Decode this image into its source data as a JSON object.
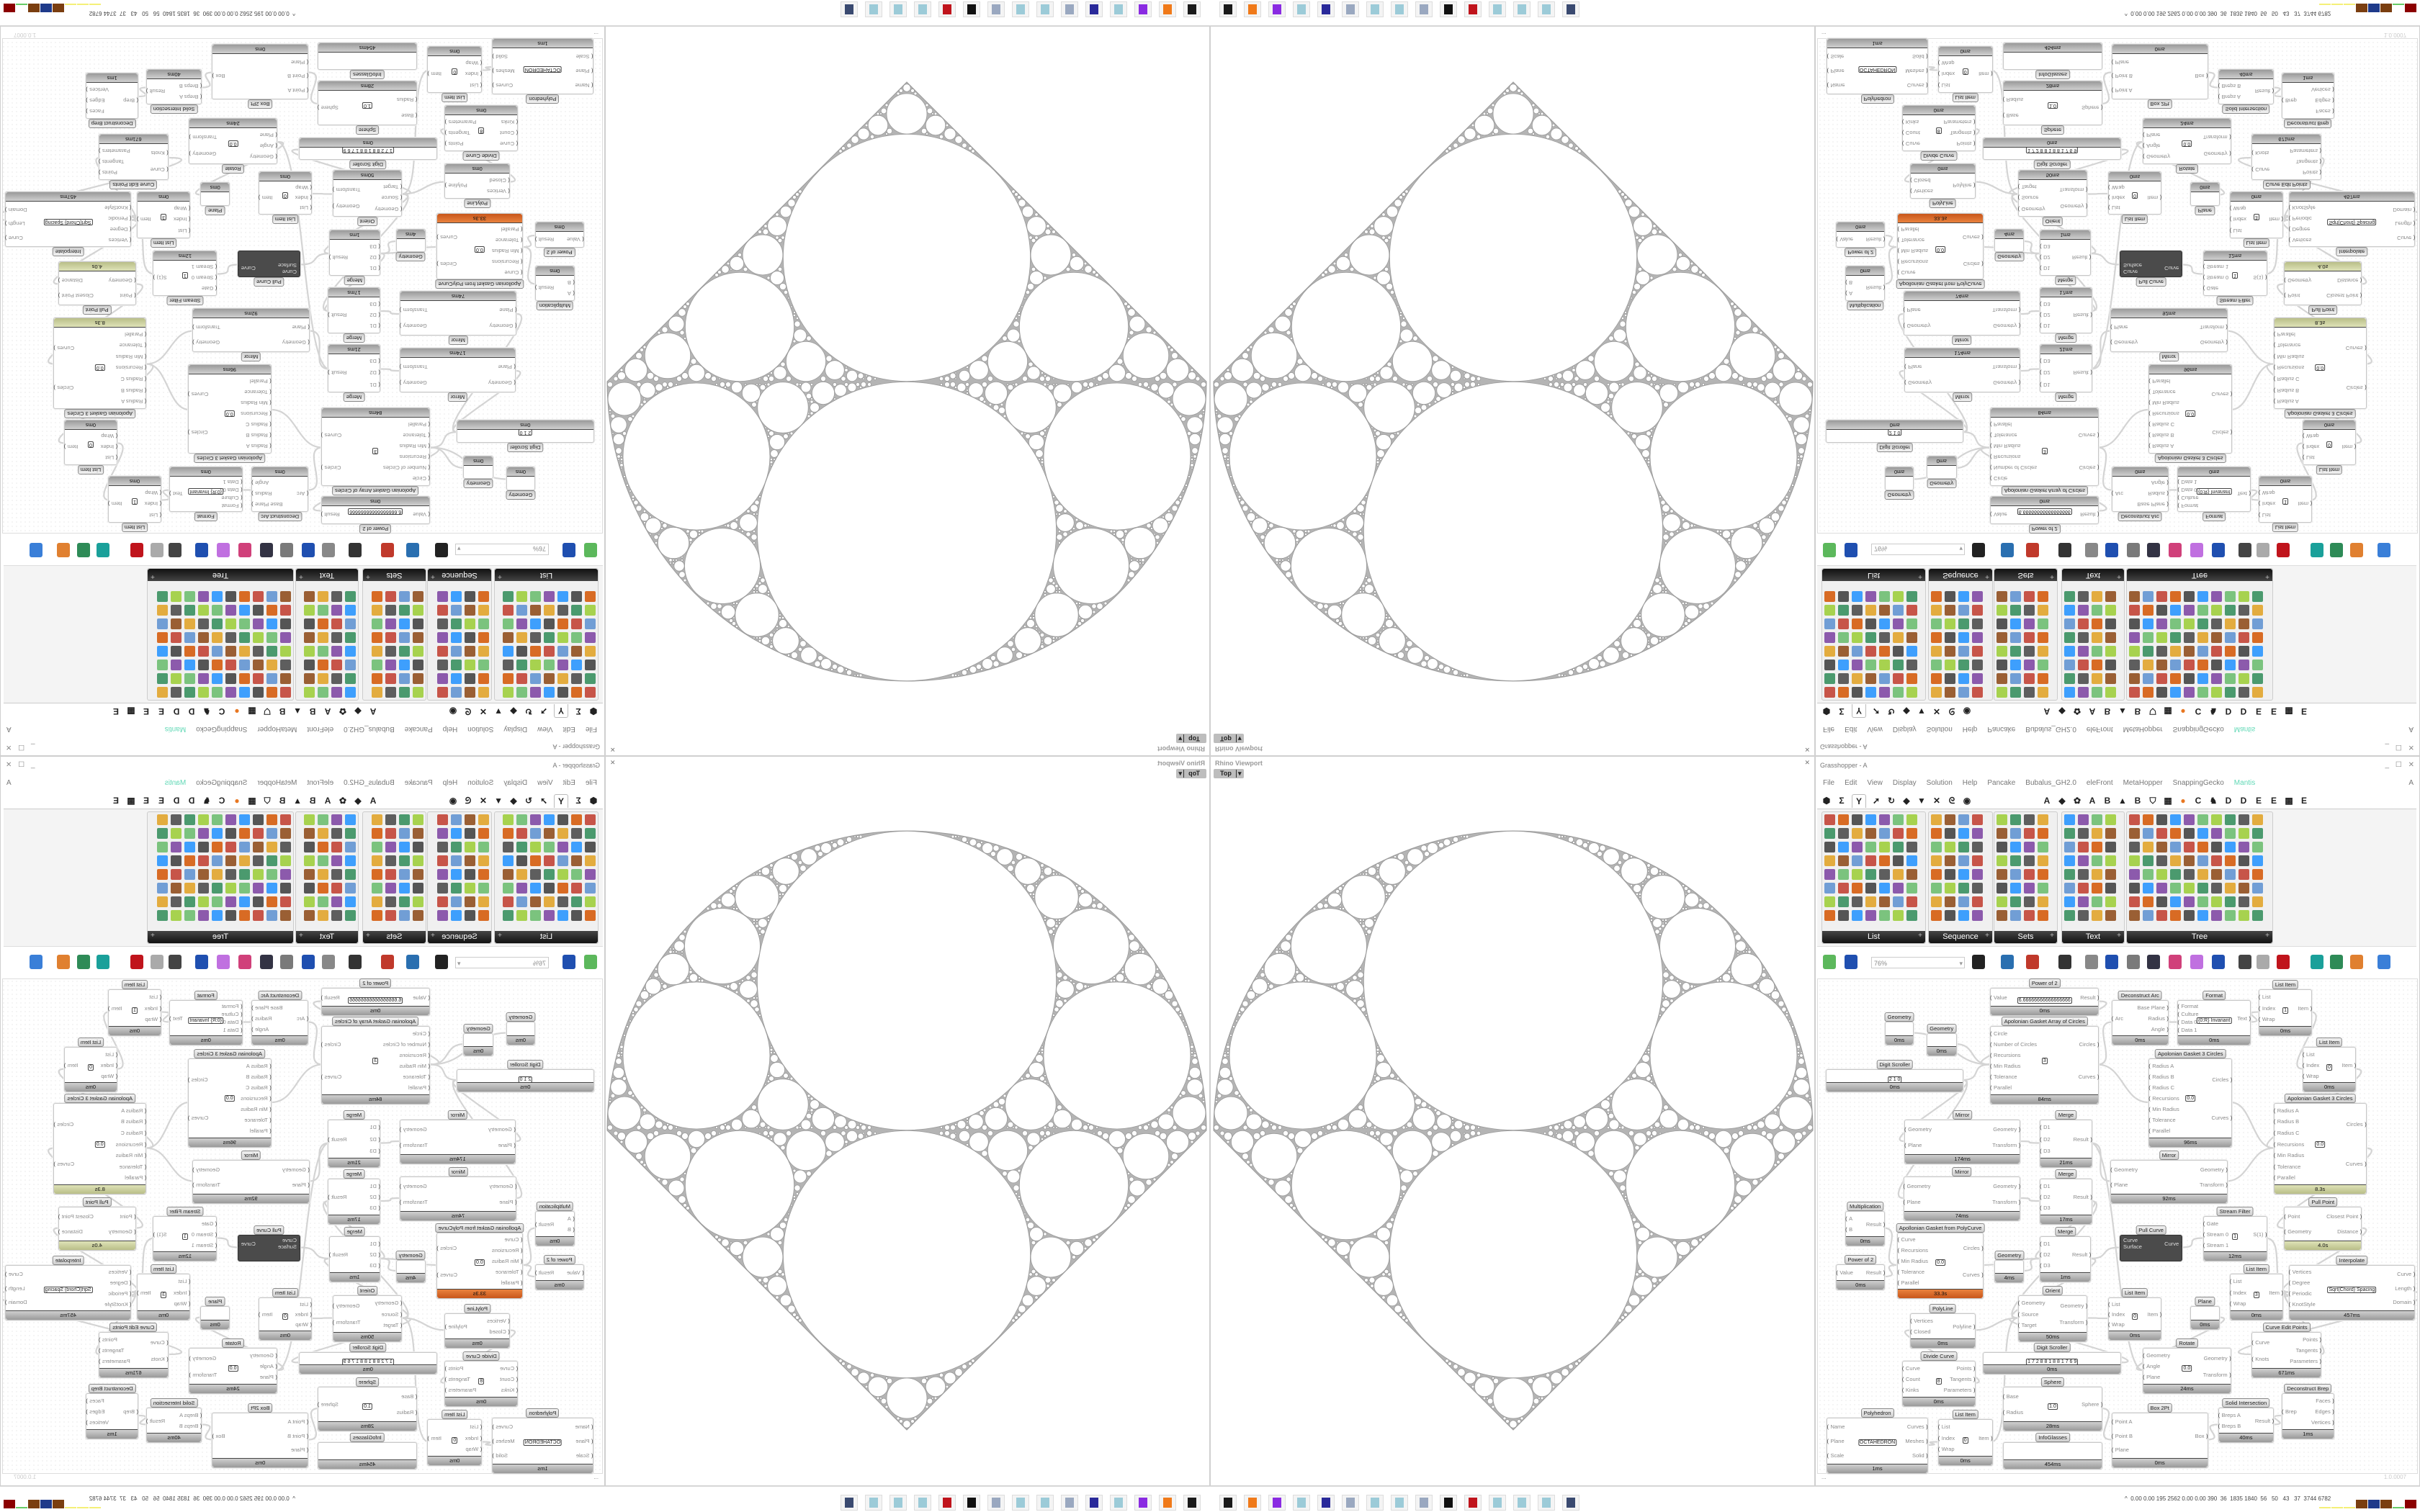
{
  "viewport": {
    "title": "Rhino Viewport",
    "view": "Top",
    "close": "✕"
  },
  "grasshopper": {
    "title": "Grasshopper - A",
    "window_buttons": "_ ☐ ✕",
    "menu": [
      "File",
      "Edit",
      "View",
      "Display",
      "Solution",
      "Help",
      "Pancake",
      "Bubalus_GH2.0",
      "eleFront",
      "MetaHopper",
      "SnappingGecko",
      "Mantis"
    ],
    "menu_right": "A",
    "accent": "#5fd8b5",
    "tabs": [
      "⬢",
      "Σ",
      "Y",
      "➚",
      "↻",
      "◆",
      "▼",
      "✕",
      "ᘓ",
      "◉",
      "A",
      "◆",
      "✿",
      "A",
      "B",
      "▲",
      "B",
      "⛉",
      "▦",
      "●",
      "C",
      "♞",
      "D",
      "D",
      "E",
      "E",
      "▩",
      "E"
    ],
    "selected_tab": "Y",
    "panels": [
      {
        "label": "List"
      },
      {
        "label": "Sequence"
      },
      {
        "label": "Sets"
      },
      {
        "label": "Text"
      },
      {
        "label": "Tree"
      }
    ],
    "panel_expand": "+",
    "zoom": "76%",
    "zoom_arrow": "▾",
    "status_left": "...",
    "version": "1.0.0007"
  },
  "canvas": {
    "nodes": [
      {
        "title": "Power of 2",
        "in": [
          "Value"
        ],
        "out": [
          "Result"
        ],
        "value": "6.66666666666666666",
        "time": "0ms"
      },
      {
        "title": "Apolonian Gasket Array of Circles",
        "in": [
          "Circle",
          "Number of Circles",
          "Recursions",
          "Min Radius",
          "Tolerance",
          "Parallel"
        ],
        "out": [
          "Circles",
          "Curves"
        ],
        "value": "3",
        "time": "84ms"
      },
      {
        "title": "Geometry",
        "in": [],
        "out": [],
        "time": "0ms"
      },
      {
        "title": "Geometry",
        "in": [],
        "out": [],
        "time": "0ms"
      },
      {
        "title": "Digit Scroller",
        "in": [],
        "out": [],
        "value": "2 1 0",
        "time": "0ms"
      },
      {
        "title": "Deconstruct Arc",
        "in": [
          "Arc"
        ],
        "out": [
          "Base Plane",
          "Radius",
          "Angle"
        ],
        "time": "0ms"
      },
      {
        "title": "Format",
        "in": [
          "Format",
          "Culture",
          "Data 0",
          "Data 1"
        ],
        "out": [
          "Text"
        ],
        "value": "{0:R} Invariant",
        "time": "0ms"
      },
      {
        "title": "List Item",
        "in": [
          "List",
          "Index",
          "Wrap"
        ],
        "out": [
          "Item"
        ],
        "value": "1",
        "time": "0ms"
      },
      {
        "title": "List Item",
        "in": [
          "List",
          "Index",
          "Wrap"
        ],
        "out": [
          "Item"
        ],
        "value": "0",
        "time": "0ms"
      },
      {
        "title": "Apolonian Gasket 3 Circles",
        "in": [
          "Radius A",
          "Radius B",
          "Radius C",
          "Recursions",
          "Min Radius",
          "Tolerance",
          "Parallel"
        ],
        "out": [
          "Circles",
          "Curves"
        ],
        "value": "0.0",
        "time": "96ms"
      },
      {
        "title": "Mirror",
        "in": [
          "Geometry",
          "Plane"
        ],
        "out": [
          "Geometry",
          "Transform"
        ],
        "time": "174ms"
      },
      {
        "title": "Merge",
        "in": [
          "D1",
          "D2",
          "D3"
        ],
        "out": [
          "Result"
        ],
        "time": "21ms"
      },
      {
        "title": "Mirror",
        "in": [
          "Geometry",
          "Plane"
        ],
        "out": [
          "Geometry",
          "Transform"
        ],
        "time": "74ms"
      },
      {
        "title": "Merge",
        "in": [
          "D1",
          "D2",
          "D3"
        ],
        "out": [
          "Result"
        ],
        "time": "17ms"
      },
      {
        "title": "Mirror",
        "in": [
          "Geometry",
          "Plane"
        ],
        "out": [
          "Geometry",
          "Transform"
        ],
        "time": "92ms"
      },
      {
        "title": "Apolonian Gasket 3 Circles",
        "in": [
          "Radius A",
          "Radius B",
          "Radius C",
          "Recursions",
          "Min Radius",
          "Tolerance",
          "Parallel"
        ],
        "out": [
          "Circles",
          "Curves"
        ],
        "value": "0.0",
        "time": "8.3s",
        "status": "olive"
      },
      {
        "title": "Pull Point",
        "in": [
          "Point",
          "Geometry"
        ],
        "out": [
          "Closest Point",
          "Distance"
        ],
        "time": "4.0s",
        "status": "olive"
      },
      {
        "title": "Multiplication",
        "in": [
          "A",
          "B"
        ],
        "out": [
          "Result"
        ],
        "time": "0ms"
      },
      {
        "title": "Apollonian Gasket from PolyCurve",
        "in": [
          "Curve",
          "Recursions",
          "Min Radius",
          "Tolerance",
          "Parallel"
        ],
        "out": [
          "Circles",
          "Curves"
        ],
        "value": "0.0",
        "time": "33.3s",
        "status": "orange"
      },
      {
        "title": "Power of 2",
        "in": [
          "Value"
        ],
        "out": [
          "Result"
        ],
        "time": "0ms"
      },
      {
        "title": "Geometry",
        "in": [],
        "out": [],
        "time": "4ms"
      },
      {
        "title": "Merge",
        "in": [
          "D1",
          "D2",
          "D3"
        ],
        "out": [
          "Result"
        ],
        "time": "1ms"
      },
      {
        "title": "Pull Curve",
        "in": [
          "Curve",
          "Surface"
        ],
        "out": [
          "Curve"
        ],
        "status": "dark"
      },
      {
        "title": "Stream Filter",
        "in": [
          "Gate",
          "Stream 0",
          "Stream 1"
        ],
        "out": [
          "S(1)"
        ],
        "value": "1",
        "time": "12ms"
      },
      {
        "title": "Interpolate",
        "in": [
          "Vertices",
          "Degree",
          "Periodic",
          "KnotStyle"
        ],
        "out": [
          "Curve",
          "Length",
          "Domain"
        ],
        "value": "Sqrt(Chord) Spacing",
        "time": "457ms"
      },
      {
        "title": "List Item",
        "in": [
          "List",
          "Index",
          "Wrap"
        ],
        "out": [
          "Item"
        ],
        "value": "3",
        "time": "0ms"
      },
      {
        "title": "Orient",
        "in": [
          "Geometry",
          "Source",
          "Target"
        ],
        "out": [
          "Geometry",
          "Transform"
        ],
        "time": "50ms"
      },
      {
        "title": "List Item",
        "in": [
          "List",
          "Index",
          "Wrap"
        ],
        "out": [
          "Item"
        ],
        "value": "0",
        "time": "0ms"
      },
      {
        "title": "PolyLine",
        "in": [
          "Vertices",
          "Closed"
        ],
        "out": [
          "Polyline"
        ],
        "time": "0ms"
      },
      {
        "title": "Plane",
        "in": [],
        "out": [],
        "time": "0ms"
      },
      {
        "title": "Digit Scroller",
        "in": [],
        "out": [],
        "value": "1 7 2 8 8 1 8 8 1 7 6 9",
        "time": "0ms"
      },
      {
        "title": "Divide Curve",
        "in": [
          "Curve",
          "Count",
          "Kinks"
        ],
        "out": [
          "Points",
          "Tangents",
          "Parameters"
        ],
        "value": "8",
        "time": "0ms"
      },
      {
        "title": "Curve Edit Points",
        "in": [
          "Curve",
          "Knots"
        ],
        "out": [
          "Points",
          "Tangents",
          "Parameters"
        ],
        "time": "671ms"
      },
      {
        "title": "Rotate",
        "in": [
          "Geometry",
          "Angle",
          "Plane"
        ],
        "out": [
          "Geometry",
          "Transform"
        ],
        "value": "0.0",
        "time": "24ms"
      },
      {
        "title": "Sphere",
        "in": [
          "Base",
          "Radius"
        ],
        "out": [
          "Sphere"
        ],
        "value": "1.0",
        "time": "28ms"
      },
      {
        "title": "Deconstruct Brep",
        "in": [
          "Brep"
        ],
        "out": [
          "Faces",
          "Edges",
          "Vertices"
        ],
        "time": "1ms"
      },
      {
        "title": "Polyhedron",
        "in": [
          "Name",
          "Plane",
          "Scale"
        ],
        "out": [
          "Curves",
          "Meshes",
          "Solid"
        ],
        "value": "OCTAHEDRON",
        "time": "1ms"
      },
      {
        "title": "List Item",
        "in": [
          "List",
          "Index",
          "Wrap"
        ],
        "out": [
          "Item"
        ],
        "value": "0",
        "time": "0ms"
      },
      {
        "title": "InfoGlasses",
        "in": [],
        "out": [],
        "time": "454ms"
      },
      {
        "title": "Box 2Pt",
        "in": [
          "Point A",
          "Point B",
          "Plane"
        ],
        "out": [
          "Box"
        ],
        "time": "0ms"
      },
      {
        "title": "Solid Intersection",
        "in": [
          "Breps A",
          "Breps B"
        ],
        "out": [
          "Result"
        ],
        "time": "40ms"
      }
    ]
  },
  "taskbar": {
    "icons": [
      "terminal-icon",
      "firefox-icon",
      "app-icon",
      "notepad-icon",
      "floppy-64-icon",
      "scroll-icon",
      "notepad-icon",
      "notepad-icon",
      "scroll-icon",
      "rhino-icon",
      "red-app-icon",
      "notepad-icon",
      "notepad-icon",
      "notepad-icon",
      "camera-icon"
    ],
    "status_arrow": "^",
    "status_numbers": "0.00 0.00 195 2562 0.00 0.00 390  36  1835 1840  56   50   43   37  3744 6782",
    "status_bar_colors": [
      "#f4f078",
      "#f4f078",
      "#f4f078",
      "#7a3e10",
      "#1f3a8a",
      "#7a3e10",
      "#66cc66",
      "#8b0000"
    ]
  },
  "colors": {
    "fractal_stroke": "#9c9c9c",
    "orange_status": "#d9692a",
    "olive_status": "#c9cf9a"
  }
}
